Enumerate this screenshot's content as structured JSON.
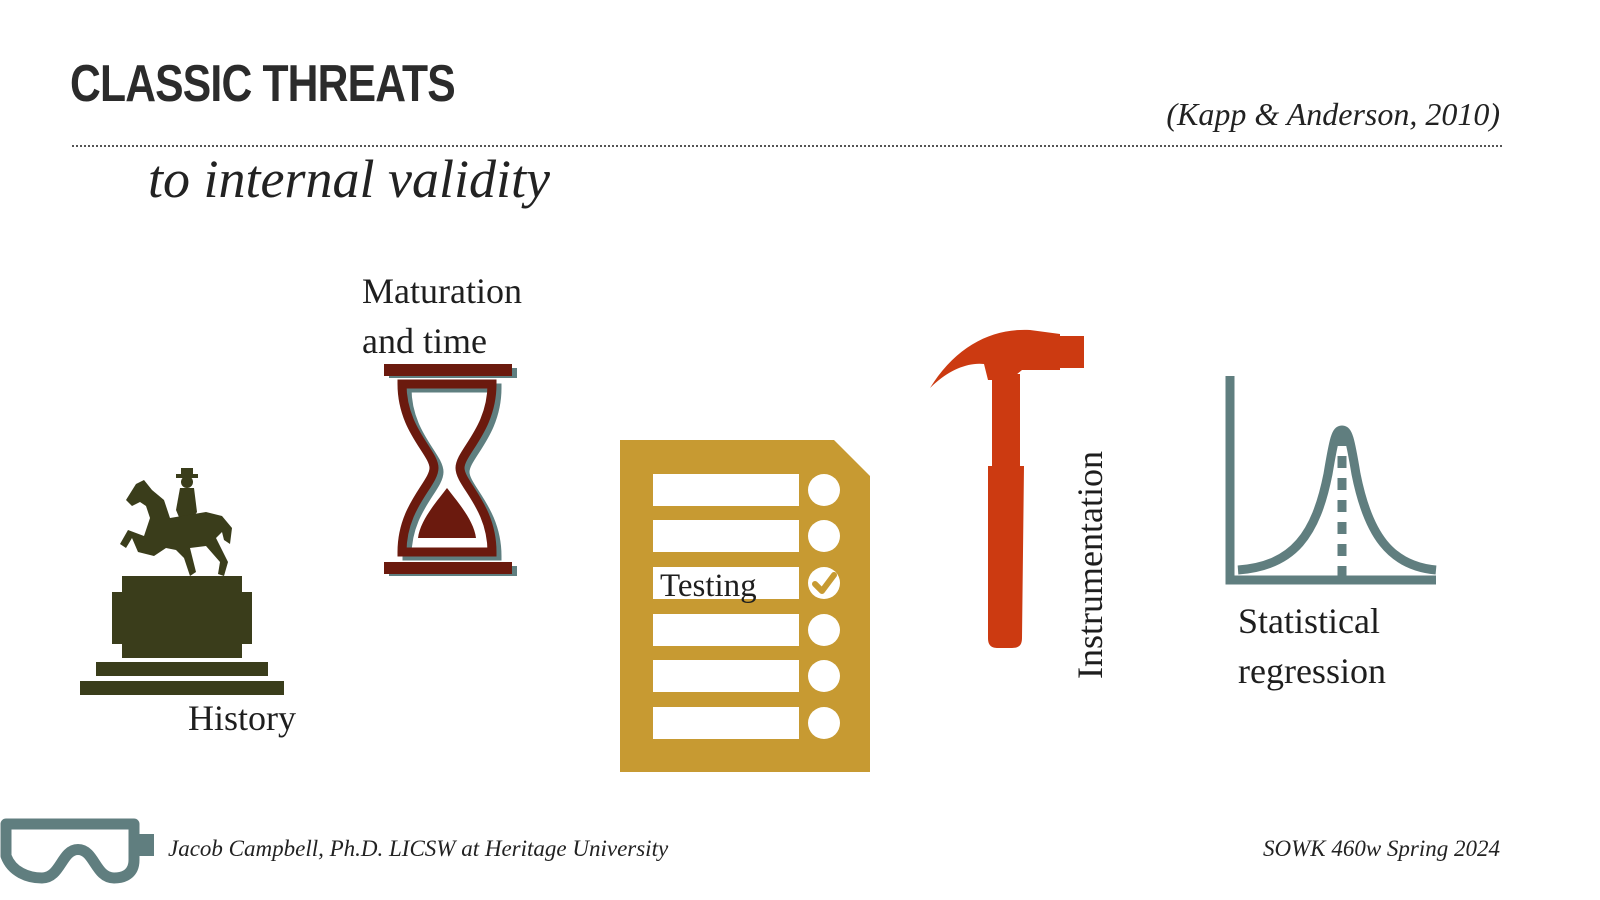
{
  "slide": {
    "title": "CLASSIC THREATS",
    "subtitle": "to internal validity",
    "citation": "(Kapp & Anderson, 2010)"
  },
  "threats": {
    "history": {
      "label": "History",
      "icon": "equestrian-statue-icon"
    },
    "maturation": {
      "label": "Maturation and time",
      "icon": "hourglass-icon"
    },
    "testing": {
      "label": "Testing",
      "icon": "checklist-icon"
    },
    "instrumentation": {
      "label": "Instrumentation",
      "icon": "hammer-icon"
    },
    "statistical_regression": {
      "label": "Statistical regression",
      "icon": "bell-curve-icon"
    }
  },
  "footer": {
    "left": "Jacob Campbell, Ph.D. LICSW at Heritage University",
    "right": "SOWK 460w Spring 2024",
    "logo_icon": "goggles-icon"
  },
  "colors": {
    "statue": "#3a3d1b",
    "hourglass": "#6b1a0e",
    "hourglass_shadow": "#5f7f80",
    "checklist": "#c79a32",
    "hammer": "#cc3a11",
    "curve": "#607e7f",
    "goggles": "#607e7f"
  }
}
